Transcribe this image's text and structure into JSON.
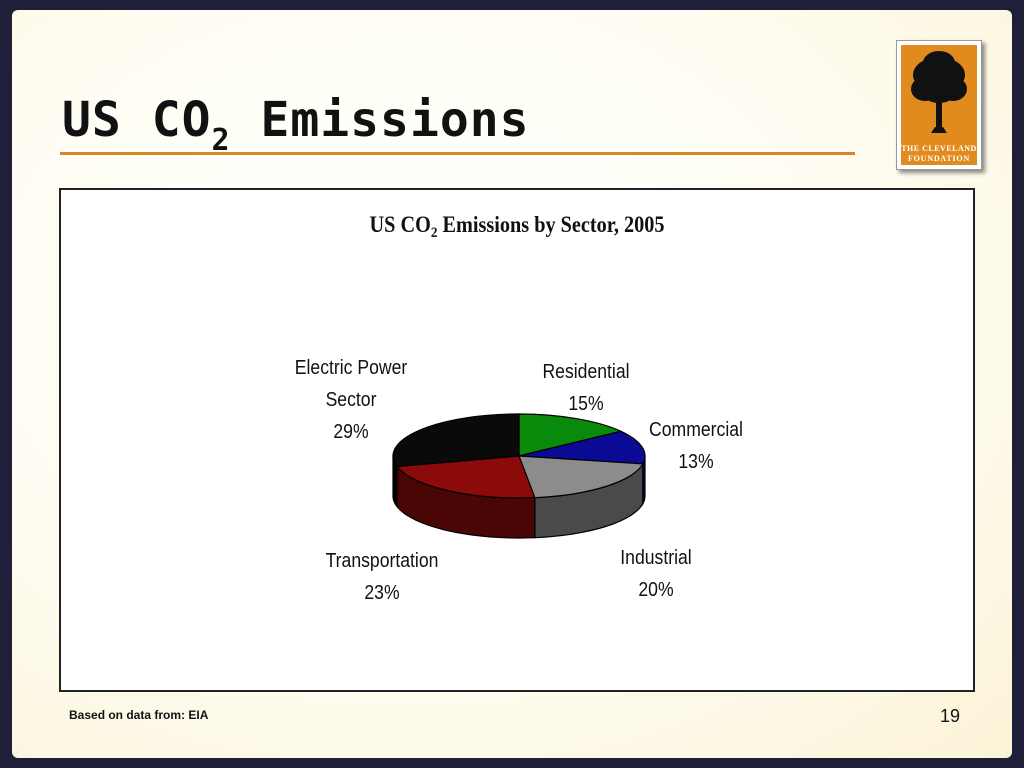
{
  "slide": {
    "title_main": "US CO",
    "title_sub": "2",
    "title_rest": " Emissions",
    "logo_text_1": "THE CLEVELAND",
    "logo_text_2": "FOUNDATION",
    "footer_source": "Based on data from: EIA",
    "page_number": "19"
  },
  "colors": {
    "accent_rule": "#d9862a",
    "logo_orange": "#e18b1e"
  },
  "chart_data": {
    "type": "pie",
    "title_main": "US CO",
    "title_sub": "2",
    "title_rest": " Emissions by Sector, 2005",
    "slices": [
      {
        "name": "Residential",
        "value": 15,
        "label_pct": "15%",
        "color": "#0a8a0a",
        "side": "#055005"
      },
      {
        "name": "Commercial",
        "value": 13,
        "label_pct": "13%",
        "color": "#0a0a96",
        "side": "#050560"
      },
      {
        "name": "Industrial",
        "value": 20,
        "label_pct": "20%",
        "color": "#8c8c8c",
        "side": "#4a4a4a"
      },
      {
        "name": "Transportation",
        "value": 23,
        "label_pct": "23%",
        "color": "#8c0a0a",
        "side": "#4a0505"
      },
      {
        "name": "Electric Power Sector",
        "name_line1": "Electric Power",
        "name_line2": "Sector",
        "value": 29,
        "label_pct": "29%",
        "color": "#0a0a0a",
        "side": "#000000"
      }
    ]
  }
}
